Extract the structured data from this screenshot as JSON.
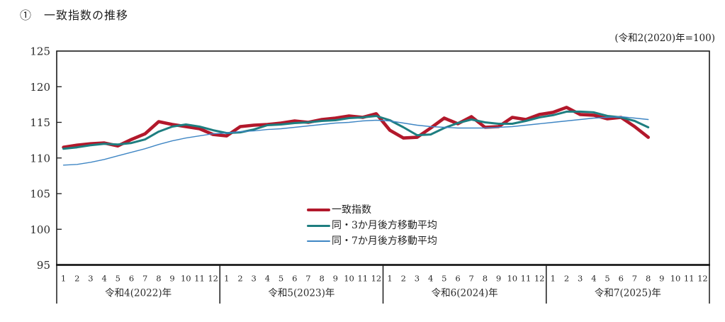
{
  "title": "①　一致指数の推移",
  "note": "(令和2(2020)年=100)",
  "colors": {
    "coincident_index": "#b2182b",
    "ma3": "#1e7e80",
    "ma7": "#3f86c4",
    "axis": "#1a1a1a",
    "text": "#2b2b2b"
  },
  "chart_data": {
    "type": "line",
    "title": "一致指数の推移",
    "subtitle": "(令和2(2020)年=100)",
    "grid": false,
    "legend_position": "inside-bottom-center",
    "y_axis": {
      "min": 95,
      "max": 125,
      "step": 5,
      "ticks": [
        95,
        100,
        105,
        110,
        115,
        120,
        125
      ]
    },
    "x_axis": {
      "years": [
        "令和4(2022)年",
        "令和5(2023)年",
        "令和6(2024)年",
        "令和7(2025)年"
      ],
      "months_per_year": [
        "1",
        "2",
        "3",
        "4",
        "5",
        "6",
        "7",
        "8",
        "9",
        "10",
        "11",
        "12"
      ]
    },
    "series": [
      {
        "name": "一致指数",
        "color": "#b2182b",
        "stroke_width": 4.6,
        "values": [
          111.5,
          111.8,
          112.0,
          112.1,
          111.7,
          112.6,
          113.4,
          115.1,
          114.7,
          114.4,
          114.1,
          113.3,
          113.1,
          114.4,
          114.6,
          114.7,
          114.9,
          115.2,
          115.0,
          115.4,
          115.6,
          115.9,
          115.7,
          116.2,
          113.9,
          112.8,
          112.9,
          114.2,
          115.6,
          114.8,
          115.8,
          114.3,
          114.4,
          115.7,
          115.4,
          116.1,
          116.4,
          117.1,
          116.1,
          116.0,
          115.5,
          115.7,
          114.4,
          112.9
        ]
      },
      {
        "name": "同・3か月後方移動平均",
        "color": "#1e7e80",
        "stroke_width": 3.0,
        "values": [
          111.3,
          111.5,
          111.8,
          112.0,
          111.9,
          112.1,
          112.6,
          113.7,
          114.4,
          114.7,
          114.4,
          113.9,
          113.5,
          113.6,
          114.0,
          114.6,
          114.7,
          114.9,
          115.0,
          115.2,
          115.3,
          115.6,
          115.7,
          115.9,
          115.3,
          114.3,
          113.2,
          113.3,
          114.2,
          114.9,
          115.4,
          115.0,
          114.8,
          114.8,
          115.2,
          115.7,
          116.0,
          116.5,
          116.5,
          116.4,
          115.9,
          115.7,
          115.2,
          114.3
        ]
      },
      {
        "name": "同・7か月後方移動平均",
        "color": "#3f86c4",
        "stroke_width": 1.4,
        "values": [
          109.0,
          109.1,
          109.4,
          109.8,
          110.3,
          110.8,
          111.3,
          111.9,
          112.4,
          112.8,
          113.1,
          113.4,
          113.5,
          113.7,
          113.8,
          114.0,
          114.1,
          114.3,
          114.5,
          114.7,
          114.9,
          115.0,
          115.2,
          115.3,
          115.2,
          114.9,
          114.6,
          114.4,
          114.3,
          114.2,
          114.2,
          114.2,
          114.3,
          114.4,
          114.6,
          114.8,
          115.0,
          115.2,
          115.4,
          115.6,
          115.7,
          115.8,
          115.6,
          115.4
        ]
      }
    ]
  }
}
